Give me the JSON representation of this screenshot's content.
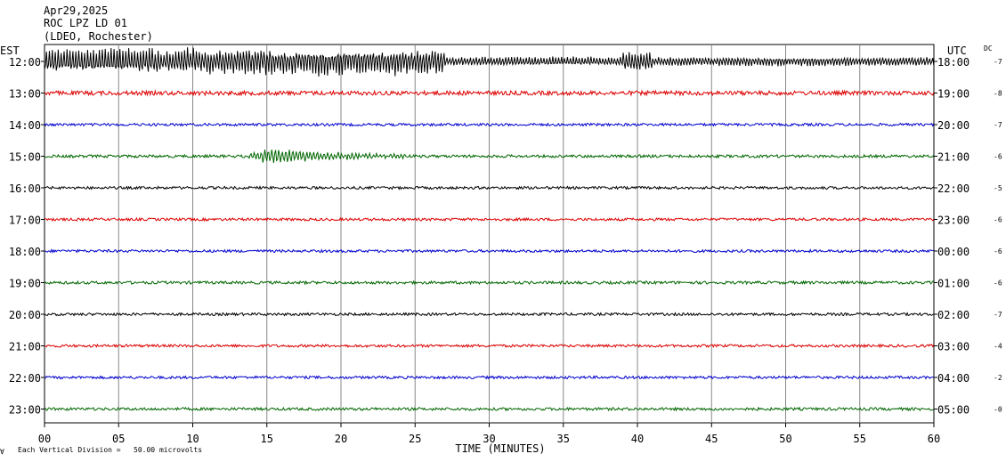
{
  "chart_data": {
    "type": "line",
    "header": {
      "date": "Apr29,2025",
      "station": "ROC LPZ LD 01",
      "network": "(LDEO, Rochester)"
    },
    "left_axis_label": "EST",
    "right_axis_label": "UTC",
    "dc_label": "DC",
    "xlabel": "TIME (MINUTES)",
    "xlim": [
      0,
      60
    ],
    "x_ticks": [
      "00",
      "05",
      "10",
      "15",
      "20",
      "25",
      "30",
      "35",
      "40",
      "45",
      "50",
      "55",
      "60"
    ],
    "grid": true,
    "footnote_symbol": "∀",
    "footnote": "Each Vertical Division =   50.00 microvolts",
    "trace_colors": [
      "#000000",
      "#dd0000",
      "#0000cc",
      "#006600"
    ],
    "rows": [
      {
        "est": "12:00",
        "utc": "18:00",
        "dc": "-7",
        "noise": 9.0
      },
      {
        "est": "13:00",
        "utc": "19:00",
        "dc": "-8",
        "noise": 2.4
      },
      {
        "est": "14:00",
        "utc": "20:00",
        "dc": "-7",
        "noise": 1.5
      },
      {
        "est": "15:00",
        "utc": "21:00",
        "dc": "-6",
        "noise": 1.6,
        "event": {
          "start": 13.5,
          "end": 24.5,
          "amp": 8
        }
      },
      {
        "est": "16:00",
        "utc": "22:00",
        "dc": "-5",
        "noise": 1.5
      },
      {
        "est": "17:00",
        "utc": "23:00",
        "dc": "-6",
        "noise": 1.5
      },
      {
        "est": "18:00",
        "utc": "00:00",
        "dc": "-6",
        "noise": 1.5
      },
      {
        "est": "19:00",
        "utc": "01:00",
        "dc": "-6",
        "noise": 1.6
      },
      {
        "est": "20:00",
        "utc": "02:00",
        "dc": "-7",
        "noise": 1.5
      },
      {
        "est": "21:00",
        "utc": "03:00",
        "dc": "-4",
        "noise": 1.5
      },
      {
        "est": "22:00",
        "utc": "04:00",
        "dc": "-2",
        "noise": 1.5
      },
      {
        "est": "23:00",
        "utc": "05:00",
        "dc": "-0",
        "noise": 1.6
      }
    ]
  }
}
